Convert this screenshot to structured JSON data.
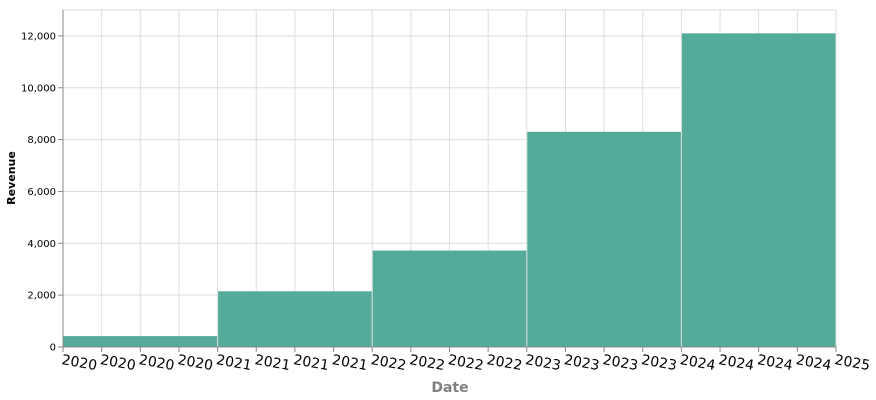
{
  "chart_data": {
    "type": "bar",
    "title": "",
    "xlabel": "Date",
    "ylabel": "Revenue",
    "x_tick_labels": [
      "2020",
      "2020",
      "2020",
      "2020",
      "2021",
      "2021",
      "2021",
      "2021",
      "2022",
      "2022",
      "2022",
      "2022",
      "2023",
      "2023",
      "2023",
      "2023",
      "2024",
      "2024",
      "2024",
      "2024",
      "2025"
    ],
    "y_ticks": [
      0,
      2000,
      4000,
      6000,
      8000,
      10000,
      12000
    ],
    "y_tick_labels": [
      "0",
      "2,000",
      "4,000",
      "6,000",
      "8,000",
      "10,000",
      "12,000"
    ],
    "ylim": [
      0,
      13000
    ],
    "grid": true,
    "series": [
      {
        "categories": [
          "2020",
          "2021",
          "2022",
          "2023",
          "2024"
        ],
        "values": [
          420,
          2150,
          3720,
          8300,
          12100
        ],
        "color": "#54ab9a"
      }
    ]
  },
  "colors": {
    "bar": "#54ab9a",
    "grid": "#dddddd",
    "axis": "#888888",
    "xlabel": "#808080",
    "ylabel": "#000000"
  }
}
